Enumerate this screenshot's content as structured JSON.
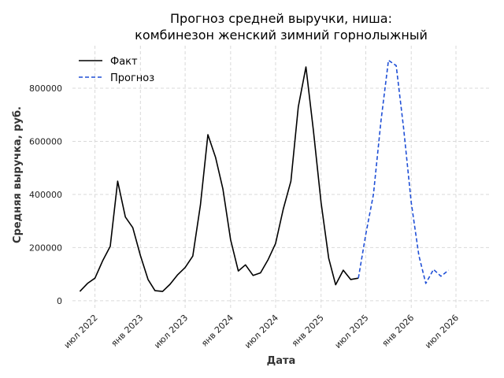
{
  "chart_data": {
    "type": "line",
    "title_lines": [
      "Прогноз средней выручки, ниша:",
      "комбинезон женский зимний горнолыжный"
    ],
    "xlabel": "Дата",
    "ylabel": "Средняя выручка, руб.",
    "ylim": [
      -30000,
      960000
    ],
    "xlim": [
      "2022-04-01",
      "2026-11-15"
    ],
    "grid": true,
    "legend_position": "top-left",
    "x_ticks": [
      {
        "date": "2022-07-01",
        "label": "июл 2022"
      },
      {
        "date": "2023-01-01",
        "label": "янв 2023"
      },
      {
        "date": "2023-07-01",
        "label": "июл 2023"
      },
      {
        "date": "2024-01-01",
        "label": "янв 2024"
      },
      {
        "date": "2024-07-01",
        "label": "июл 2024"
      },
      {
        "date": "2025-01-01",
        "label": "янв 2025"
      },
      {
        "date": "2025-07-01",
        "label": "июл 2025"
      },
      {
        "date": "2026-01-01",
        "label": "янв 2026"
      },
      {
        "date": "2026-07-01",
        "label": "июл 2026"
      }
    ],
    "y_ticks": [
      0,
      200000,
      400000,
      600000,
      800000
    ],
    "series": [
      {
        "name": "Факт",
        "color": "#000000",
        "dash": "solid",
        "points": [
          [
            "2022-05-01",
            35000
          ],
          [
            "2022-06-01",
            65000
          ],
          [
            "2022-07-01",
            85000
          ],
          [
            "2022-08-01",
            150000
          ],
          [
            "2022-09-01",
            205000
          ],
          [
            "2022-10-01",
            450000
          ],
          [
            "2022-11-01",
            315000
          ],
          [
            "2022-12-01",
            275000
          ],
          [
            "2023-01-01",
            170000
          ],
          [
            "2023-02-01",
            80000
          ],
          [
            "2023-03-01",
            38000
          ],
          [
            "2023-04-01",
            35000
          ],
          [
            "2023-05-01",
            62000
          ],
          [
            "2023-06-01",
            98000
          ],
          [
            "2023-07-01",
            125000
          ],
          [
            "2023-08-01",
            168000
          ],
          [
            "2023-09-01",
            360000
          ],
          [
            "2023-10-01",
            625000
          ],
          [
            "2023-11-01",
            540000
          ],
          [
            "2023-12-01",
            420000
          ],
          [
            "2024-01-01",
            230000
          ],
          [
            "2024-02-01",
            112000
          ],
          [
            "2024-03-01",
            135000
          ],
          [
            "2024-04-01",
            95000
          ],
          [
            "2024-05-01",
            105000
          ],
          [
            "2024-06-01",
            155000
          ],
          [
            "2024-07-01",
            215000
          ],
          [
            "2024-08-01",
            345000
          ],
          [
            "2024-09-01",
            450000
          ],
          [
            "2024-10-01",
            730000
          ],
          [
            "2024-11-01",
            880000
          ],
          [
            "2024-12-01",
            640000
          ],
          [
            "2025-01-01",
            370000
          ],
          [
            "2025-02-01",
            160000
          ],
          [
            "2025-03-01",
            60000
          ],
          [
            "2025-04-01",
            115000
          ],
          [
            "2025-05-01",
            80000
          ],
          [
            "2025-06-01",
            85000
          ]
        ]
      },
      {
        "name": "Прогноз",
        "color": "#1f4fd6",
        "dash": "dashed",
        "points": [
          [
            "2025-06-01",
            85000
          ],
          [
            "2025-07-01",
            250000
          ],
          [
            "2025-08-01",
            400000
          ],
          [
            "2025-09-01",
            680000
          ],
          [
            "2025-10-01",
            905000
          ],
          [
            "2025-11-01",
            885000
          ],
          [
            "2025-12-01",
            650000
          ],
          [
            "2026-01-01",
            370000
          ],
          [
            "2026-02-01",
            170000
          ],
          [
            "2026-03-01",
            65000
          ],
          [
            "2026-04-01",
            118000
          ],
          [
            "2026-05-01",
            92000
          ],
          [
            "2026-06-01",
            115000
          ]
        ]
      }
    ]
  }
}
